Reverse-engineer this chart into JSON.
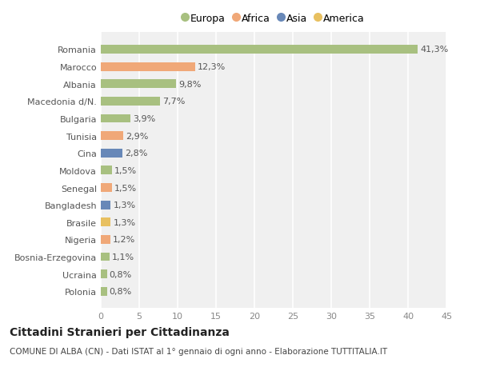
{
  "countries": [
    "Romania",
    "Marocco",
    "Albania",
    "Macedonia d/N.",
    "Bulgaria",
    "Tunisia",
    "Cina",
    "Moldova",
    "Senegal",
    "Bangladesh",
    "Brasile",
    "Nigeria",
    "Bosnia-Erzegovina",
    "Ucraina",
    "Polonia"
  ],
  "values": [
    41.3,
    12.3,
    9.8,
    7.7,
    3.9,
    2.9,
    2.8,
    1.5,
    1.5,
    1.3,
    1.3,
    1.2,
    1.1,
    0.8,
    0.8
  ],
  "labels": [
    "41,3%",
    "12,3%",
    "9,8%",
    "7,7%",
    "3,9%",
    "2,9%",
    "2,8%",
    "1,5%",
    "1,5%",
    "1,3%",
    "1,3%",
    "1,2%",
    "1,1%",
    "0,8%",
    "0,8%"
  ],
  "colors": [
    "#a8c080",
    "#f0a878",
    "#a8c080",
    "#a8c080",
    "#a8c080",
    "#f0a878",
    "#6888b8",
    "#a8c080",
    "#f0a878",
    "#6888b8",
    "#e8c060",
    "#f0a878",
    "#a8c080",
    "#a8c080",
    "#a8c080"
  ],
  "legend_labels": [
    "Europa",
    "Africa",
    "Asia",
    "America"
  ],
  "legend_colors": [
    "#a8c080",
    "#f0a878",
    "#6888b8",
    "#e8c060"
  ],
  "title": "Cittadini Stranieri per Cittadinanza",
  "subtitle": "COMUNE DI ALBA (CN) - Dati ISTAT al 1° gennaio di ogni anno - Elaborazione TUTTITALIA.IT",
  "xlim": [
    0,
    45
  ],
  "xticks": [
    0,
    5,
    10,
    15,
    20,
    25,
    30,
    35,
    40,
    45
  ],
  "background_color": "#ffffff",
  "plot_bg_color": "#f0f0f0",
  "grid_color": "#ffffff",
  "label_fontsize": 8,
  "tick_fontsize": 8,
  "title_fontsize": 10,
  "subtitle_fontsize": 7.5,
  "bar_height": 0.5
}
